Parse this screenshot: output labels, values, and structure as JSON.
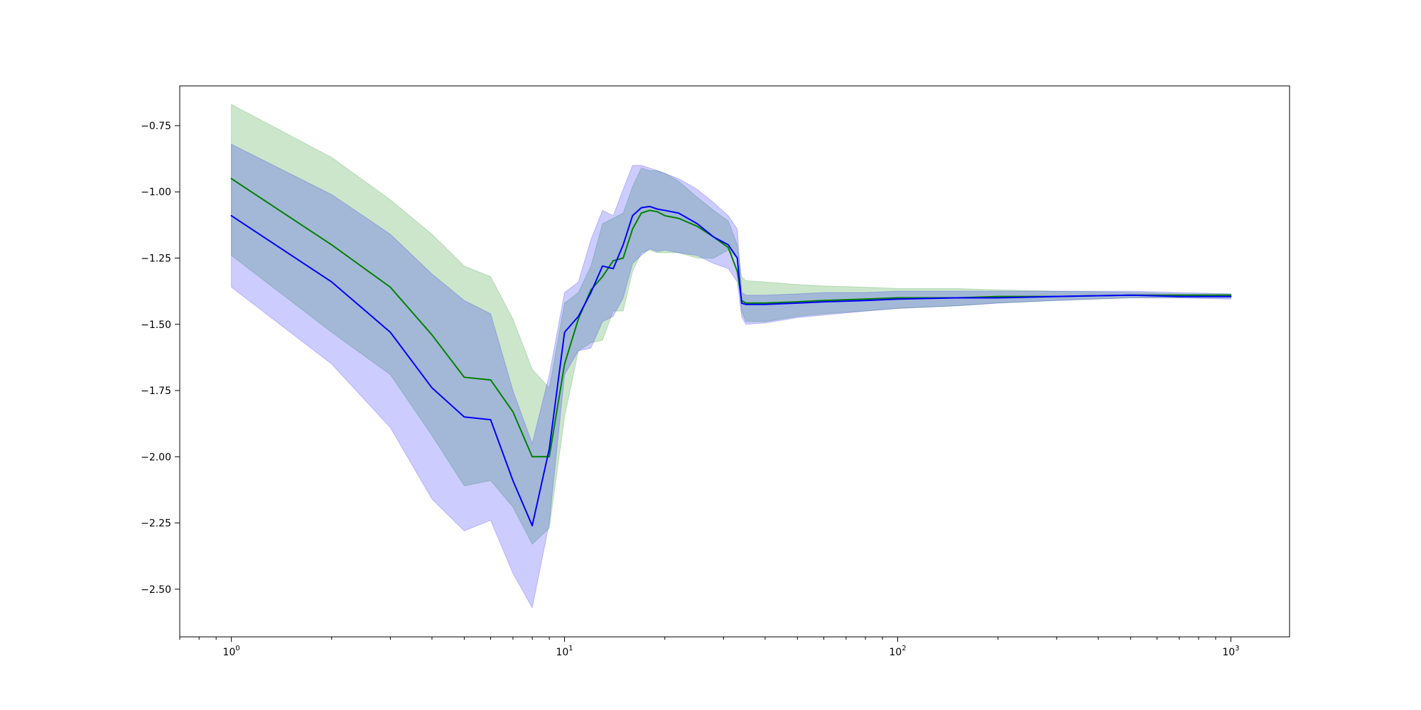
{
  "chart_data": {
    "type": "line",
    "title": "",
    "xlabel": "",
    "ylabel": "",
    "x_scale": "log",
    "xlim": [
      0.7,
      1500
    ],
    "ylim": [
      -2.68,
      -0.6
    ],
    "grid": false,
    "x_ticks": [
      {
        "value": 1,
        "label": "10",
        "exp": "0"
      },
      {
        "value": 10,
        "label": "10",
        "exp": "1"
      },
      {
        "value": 100,
        "label": "10",
        "exp": "2"
      },
      {
        "value": 1000,
        "label": "10",
        "exp": "3"
      }
    ],
    "y_ticks": [
      {
        "value": -0.75,
        "label": "−0.75"
      },
      {
        "value": -1.0,
        "label": "−1.00"
      },
      {
        "value": -1.25,
        "label": "−1.25"
      },
      {
        "value": -1.5,
        "label": "−1.50"
      },
      {
        "value": -1.75,
        "label": "−1.75"
      },
      {
        "value": -2.0,
        "label": "−2.00"
      },
      {
        "value": -2.25,
        "label": "−2.25"
      },
      {
        "value": -2.5,
        "label": "−2.50"
      }
    ],
    "series": [
      {
        "color": "#008000",
        "band_color": "#008000",
        "band_opacity": 0.2,
        "x": [
          1,
          2,
          3,
          4,
          5,
          6,
          7,
          8,
          9,
          10,
          11,
          12,
          13,
          14,
          15,
          16,
          17,
          18,
          19,
          20,
          22,
          25,
          28,
          31,
          33,
          34,
          35,
          40,
          50,
          60,
          80,
          100,
          150,
          200,
          300,
          500,
          700,
          1000
        ],
        "y": [
          -0.95,
          -1.2,
          -1.36,
          -1.54,
          -1.7,
          -1.71,
          -1.83,
          -2.0,
          -2.0,
          -1.65,
          -1.48,
          -1.37,
          -1.32,
          -1.26,
          -1.25,
          -1.14,
          -1.08,
          -1.07,
          -1.075,
          -1.09,
          -1.1,
          -1.13,
          -1.17,
          -1.21,
          -1.3,
          -1.41,
          -1.42,
          -1.42,
          -1.415,
          -1.41,
          -1.405,
          -1.4,
          -1.4,
          -1.395,
          -1.395,
          -1.39,
          -1.39,
          -1.39
        ],
        "upper": [
          -0.67,
          -0.87,
          -1.03,
          -1.16,
          -1.28,
          -1.32,
          -1.48,
          -1.67,
          -1.74,
          -1.42,
          -1.38,
          -1.28,
          -1.12,
          -1.1,
          -1.08,
          -0.98,
          -0.91,
          -0.92,
          -0.92,
          -0.93,
          -0.96,
          -1.02,
          -1.07,
          -1.11,
          -1.2,
          -1.32,
          -1.335,
          -1.34,
          -1.35,
          -1.355,
          -1.36,
          -1.365,
          -1.365,
          -1.37,
          -1.375,
          -1.38,
          -1.385,
          -1.385
        ],
        "lower": [
          -1.24,
          -1.53,
          -1.69,
          -1.92,
          -2.11,
          -2.09,
          -2.19,
          -2.33,
          -2.27,
          -1.85,
          -1.6,
          -1.57,
          -1.56,
          -1.45,
          -1.45,
          -1.3,
          -1.23,
          -1.22,
          -1.23,
          -1.23,
          -1.23,
          -1.25,
          -1.25,
          -1.22,
          -1.25,
          -1.45,
          -1.49,
          -1.49,
          -1.47,
          -1.46,
          -1.45,
          -1.44,
          -1.43,
          -1.42,
          -1.41,
          -1.4,
          -1.4,
          -1.4
        ]
      },
      {
        "color": "#0000ff",
        "band_color": "#0000ff",
        "band_opacity": 0.2,
        "x": [
          1,
          2,
          3,
          4,
          5,
          6,
          7,
          8,
          9,
          10,
          11,
          12,
          13,
          14,
          15,
          16,
          17,
          18,
          19,
          20,
          22,
          25,
          28,
          31,
          33,
          34,
          35,
          40,
          50,
          60,
          80,
          100,
          150,
          200,
          300,
          500,
          700,
          1000
        ],
        "y": [
          -1.09,
          -1.34,
          -1.53,
          -1.74,
          -1.85,
          -1.86,
          -2.09,
          -2.26,
          -1.97,
          -1.53,
          -1.47,
          -1.38,
          -1.28,
          -1.29,
          -1.2,
          -1.09,
          -1.06,
          -1.055,
          -1.065,
          -1.07,
          -1.08,
          -1.12,
          -1.17,
          -1.2,
          -1.25,
          -1.42,
          -1.425,
          -1.425,
          -1.42,
          -1.415,
          -1.41,
          -1.405,
          -1.4,
          -1.4,
          -1.395,
          -1.39,
          -1.395,
          -1.395
        ],
        "upper": [
          -0.82,
          -1.01,
          -1.16,
          -1.31,
          -1.41,
          -1.46,
          -1.75,
          -1.95,
          -1.69,
          -1.38,
          -1.34,
          -1.18,
          -1.07,
          -1.09,
          -0.99,
          -0.9,
          -0.9,
          -0.91,
          -0.92,
          -0.93,
          -0.95,
          -0.99,
          -1.04,
          -1.09,
          -1.14,
          -1.38,
          -1.39,
          -1.39,
          -1.385,
          -1.38,
          -1.38,
          -1.375,
          -1.375,
          -1.375,
          -1.375,
          -1.375,
          -1.38,
          -1.385
        ],
        "lower": [
          -1.36,
          -1.65,
          -1.89,
          -2.16,
          -2.28,
          -2.24,
          -2.44,
          -2.57,
          -2.25,
          -1.69,
          -1.6,
          -1.59,
          -1.49,
          -1.47,
          -1.4,
          -1.27,
          -1.24,
          -1.215,
          -1.225,
          -1.22,
          -1.23,
          -1.24,
          -1.27,
          -1.29,
          -1.34,
          -1.47,
          -1.5,
          -1.495,
          -1.475,
          -1.465,
          -1.45,
          -1.44,
          -1.43,
          -1.42,
          -1.41,
          -1.4,
          -1.4,
          -1.405
        ]
      }
    ]
  }
}
